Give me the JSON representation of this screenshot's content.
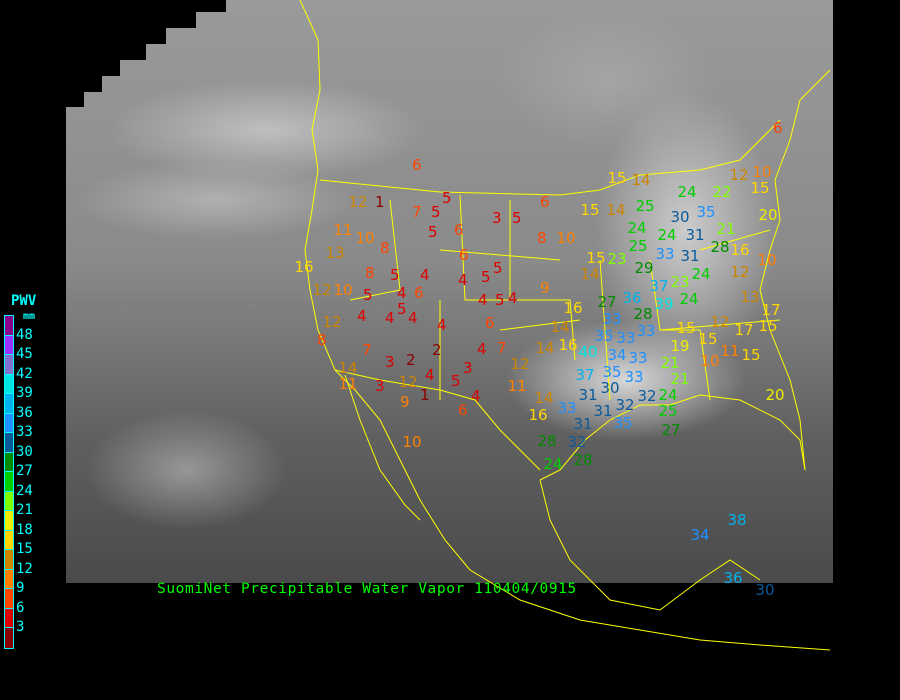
{
  "title": "SuomiNet Precipitable Water Vapor 110404/0915",
  "legend": {
    "title": "PWV",
    "unit": "mm",
    "ticks": [
      "48",
      "45",
      "42",
      "39",
      "36",
      "33",
      "30",
      "27",
      "24",
      "21",
      "18",
      "15",
      "12",
      "9",
      "6",
      "3"
    ],
    "colors": [
      "#8b008b",
      "#9b30ff",
      "#8470d0",
      "#00e5e5",
      "#00b2ee",
      "#1e90ff",
      "#0a5a9a",
      "#008b00",
      "#00cd00",
      "#7fff00",
      "#eeee00",
      "#ffd700",
      "#cd8500",
      "#ff8000",
      "#ff4500",
      "#dd0000",
      "#8b0000"
    ]
  },
  "map": {
    "boundary_color": "#ffff00",
    "background": "satellite-water-vapor-gray"
  },
  "stations": [
    6,
    5,
    7,
    5,
    5,
    6,
    3,
    5,
    6,
    8,
    10,
    12,
    1,
    11,
    10,
    8,
    13,
    16,
    8,
    5,
    4,
    6,
    4,
    5,
    5,
    4,
    5,
    5,
    4,
    5,
    6,
    4,
    9,
    12,
    10,
    12,
    8,
    4,
    4,
    4,
    4,
    6,
    7,
    3,
    2,
    2,
    4,
    7,
    3,
    5,
    4,
    12,
    1,
    9,
    3,
    14,
    11,
    4,
    6,
    10,
    12,
    11,
    14,
    16,
    14,
    16,
    14,
    16,
    15,
    14,
    15,
    14,
    24,
    22,
    25,
    24,
    30,
    35,
    24,
    31,
    28,
    21,
    25,
    33,
    31,
    16,
    29,
    24,
    23,
    15,
    23,
    14,
    12,
    10,
    37,
    39,
    24,
    36,
    27,
    28,
    33,
    13,
    17,
    15,
    12,
    15,
    20,
    15,
    12,
    10,
    6,
    19,
    15,
    33,
    35,
    33,
    34,
    40,
    33,
    37,
    35,
    33,
    32,
    21,
    21,
    30,
    31,
    31,
    32,
    33,
    31,
    35,
    24,
    25,
    27,
    28,
    32,
    24,
    28,
    11,
    10,
    15,
    17,
    20,
    34,
    38,
    36,
    30
  ]
}
